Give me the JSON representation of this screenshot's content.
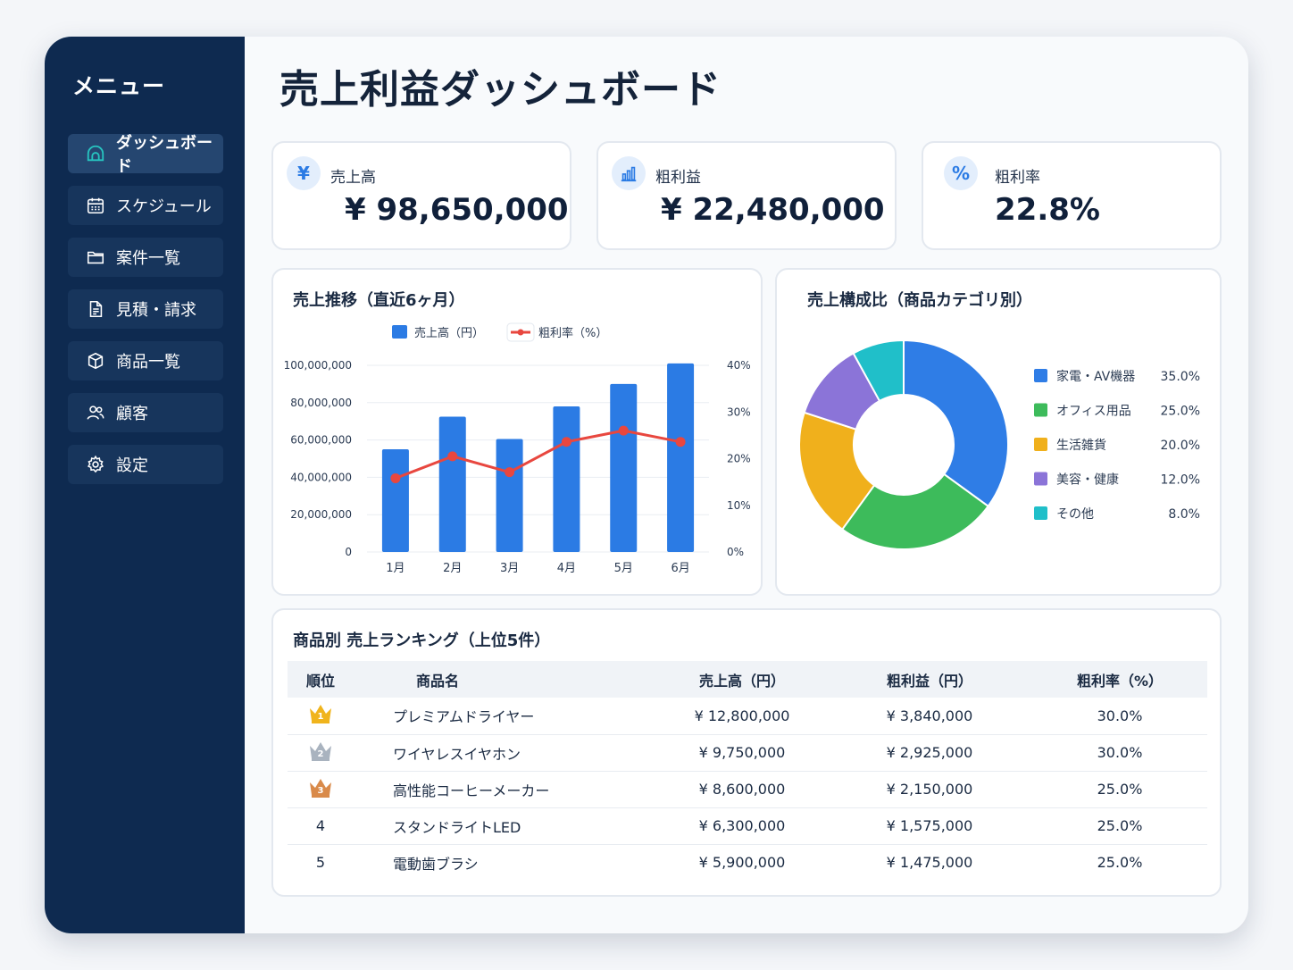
{
  "sidebar": {
    "title": "メニュー",
    "items": [
      {
        "label": "ダッシュボード",
        "icon": "dashboard-icon",
        "active": true
      },
      {
        "label": "スケジュール",
        "icon": "calendar-icon"
      },
      {
        "label": "案件一覧",
        "icon": "folder-icon"
      },
      {
        "label": "見積・請求",
        "icon": "document-icon"
      },
      {
        "label": "商品一覧",
        "icon": "box-icon"
      },
      {
        "label": "顧客",
        "icon": "users-icon"
      },
      {
        "label": "設定",
        "icon": "gear-icon"
      }
    ]
  },
  "page": {
    "title": "売上利益ダッシュボード"
  },
  "kpis": [
    {
      "label": "売上高",
      "value": "¥ 98,650,000",
      "icon": "yen-icon",
      "icon_glyph": "¥"
    },
    {
      "label": "粗利益",
      "value": "¥ 22,480,000",
      "icon": "bar-chart-icon"
    },
    {
      "label": "粗利率",
      "value": "22.8%",
      "icon": "percent-icon",
      "icon_glyph": "%"
    }
  ],
  "colors": {
    "accent": "#2b7be4",
    "line": "#e8473f",
    "sidebar": "#0e2a50"
  },
  "chart_data": [
    {
      "type": "bar",
      "title": "売上推移（直近6ヶ月）",
      "categories": [
        "1月",
        "2月",
        "3月",
        "4月",
        "5月",
        "6月"
      ],
      "series": [
        {
          "name": "売上高（円）",
          "type": "bar",
          "axis": "left",
          "color": "#2b7be4",
          "values": [
            55000000,
            72500000,
            60500000,
            78000000,
            90000000,
            101000000
          ]
        },
        {
          "name": "粗利率（%）",
          "type": "line",
          "axis": "right",
          "color": "#e8473f",
          "values": [
            15.8,
            20.5,
            17.1,
            23.6,
            26.0,
            23.6
          ]
        }
      ],
      "left_axis": {
        "ylim": [
          0,
          100000000
        ],
        "ticks": [
          "0",
          "20,000,000",
          "40,000,000",
          "60,000,000",
          "80,000,000",
          "100,000,000"
        ]
      },
      "right_axis": {
        "ylim": [
          0,
          40
        ],
        "ticks": [
          "0%",
          "10%",
          "20%",
          "30%",
          "40%"
        ]
      },
      "legend": "top",
      "grid": true
    },
    {
      "type": "pie",
      "title": "売上構成比（商品カテゴリ別）",
      "slices": [
        {
          "label": "家電・AV機器",
          "value": 35.0,
          "display": "35.0%",
          "color": "#2f7de6"
        },
        {
          "label": "オフィス用品",
          "value": 25.0,
          "display": "25.0%",
          "color": "#3dbb5b"
        },
        {
          "label": "生活雑貨",
          "value": 20.0,
          "display": "20.0%",
          "color": "#f0b01c"
        },
        {
          "label": "美容・健康",
          "value": 12.0,
          "display": "12.0%",
          "color": "#8b74d8"
        },
        {
          "label": "その他",
          "value": 8.0,
          "display": "8.0%",
          "color": "#20bfc9"
        }
      ],
      "donut": true,
      "legend": "right"
    }
  ],
  "ranking": {
    "title": "商品別 売上ランキング（上位5件）",
    "columns": [
      "順位",
      "商品名",
      "売上高（円）",
      "粗利益（円）",
      "粗利率（%）"
    ],
    "rows": [
      {
        "rank": "1",
        "medal": "gold",
        "name": "プレミアムドライヤー",
        "sales": "¥ 12,800,000",
        "profit": "¥ 3,840,000",
        "rate": "30.0%"
      },
      {
        "rank": "2",
        "medal": "silver",
        "name": "ワイヤレスイヤホン",
        "sales": "¥ 9,750,000",
        "profit": "¥ 2,925,000",
        "rate": "30.0%"
      },
      {
        "rank": "3",
        "medal": "bronze",
        "name": "高性能コーヒーメーカー",
        "sales": "¥ 8,600,000",
        "profit": "¥ 2,150,000",
        "rate": "25.0%"
      },
      {
        "rank": "4",
        "medal": "",
        "name": "スタンドライトLED",
        "sales": "¥ 6,300,000",
        "profit": "¥ 1,575,000",
        "rate": "25.0%"
      },
      {
        "rank": "5",
        "medal": "",
        "name": "電動歯ブラシ",
        "sales": "¥ 5,900,000",
        "profit": "¥ 1,475,000",
        "rate": "25.0%"
      }
    ]
  }
}
